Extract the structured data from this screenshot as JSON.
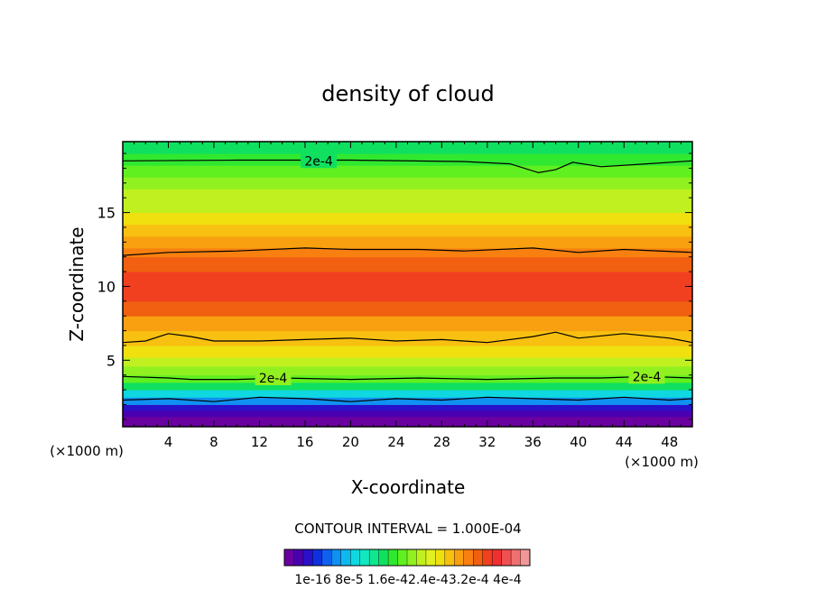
{
  "chart_data": {
    "type": "heatmap",
    "title": "density of cloud",
    "xlabel": "X-coordinate",
    "ylabel": "Z-coordinate",
    "x_unit_left": "(×1000 m)",
    "x_unit_right": "(×1000 m)",
    "xlim": [
      0,
      50
    ],
    "ylim": [
      0.5,
      19.8
    ],
    "x_ticks": [
      4,
      8,
      12,
      16,
      20,
      24,
      28,
      32,
      36,
      40,
      44,
      48
    ],
    "y_ticks": [
      5,
      10,
      15
    ],
    "contour_interval_text": "CONTOUR INTERVAL = 1.000E-04",
    "contour_labels": [
      {
        "text": "2e-4",
        "x": 17.2,
        "z": 18.5
      },
      {
        "text": "2e-4",
        "x": 13.2,
        "z": 3.8
      },
      {
        "text": "2e-4",
        "x": 46.0,
        "z": 3.9
      }
    ],
    "colorbar_labels": [
      "1e-16",
      "8e-5",
      "1.6e-4",
      "2.4e-4",
      "3.2e-4",
      "4e-4"
    ],
    "colorbar_label_text": "1e-16  8e-5  1.6e-42.4e-43.2e-4  4e-4",
    "colorbar_colors": [
      "#6a00a0",
      "#4a00b0",
      "#2a10c8",
      "#1030e0",
      "#1060f0",
      "#1090f0",
      "#10b8f0",
      "#10d8e0",
      "#10e8c0",
      "#10e890",
      "#10e060",
      "#30e830",
      "#60f020",
      "#90f020",
      "#c0f020",
      "#e0f020",
      "#f0e010",
      "#f8c010",
      "#f8a010",
      "#f88010",
      "#f06010",
      "#f04020",
      "#f03030",
      "#f05050",
      "#f07070",
      "#f09898"
    ],
    "bands": [
      {
        "z": 0.5,
        "level": 0.0
      },
      {
        "z": 1.2,
        "level": 0.02
      },
      {
        "z": 1.6,
        "level": 0.08
      },
      {
        "z": 2.0,
        "level": 0.18
      },
      {
        "z": 2.5,
        "level": 0.28
      },
      {
        "z": 3.0,
        "level": 0.38
      },
      {
        "z": 3.5,
        "level": 0.46
      },
      {
        "z": 4.0,
        "level": 0.52
      },
      {
        "z": 4.6,
        "level": 0.58
      },
      {
        "z": 5.2,
        "level": 0.62
      },
      {
        "z": 6.0,
        "level": 0.66
      },
      {
        "z": 7.0,
        "level": 0.72
      },
      {
        "z": 8.0,
        "level": 0.78
      },
      {
        "z": 9.0,
        "level": 0.82
      },
      {
        "z": 10.0,
        "level": 0.84
      },
      {
        "z": 11.0,
        "level": 0.8
      },
      {
        "z": 12.0,
        "level": 0.76
      },
      {
        "z": 12.6,
        "level": 0.72
      },
      {
        "z": 13.4,
        "level": 0.66
      },
      {
        "z": 14.2,
        "level": 0.62
      },
      {
        "z": 15.0,
        "level": 0.58
      },
      {
        "z": 15.8,
        "level": 0.54
      },
      {
        "z": 16.6,
        "level": 0.5
      },
      {
        "z": 17.4,
        "level": 0.46
      },
      {
        "z": 18.2,
        "level": 0.42
      },
      {
        "z": 19.0,
        "level": 0.38
      },
      {
        "z": 19.8,
        "level": 0.34
      }
    ],
    "contour_lines": [
      {
        "name": "upper-2e-4",
        "points": [
          [
            0,
            18.5
          ],
          [
            10,
            18.55
          ],
          [
            20,
            18.55
          ],
          [
            30,
            18.45
          ],
          [
            34,
            18.3
          ],
          [
            36.5,
            17.7
          ],
          [
            38,
            17.9
          ],
          [
            39.5,
            18.4
          ],
          [
            42,
            18.1
          ],
          [
            46,
            18.3
          ],
          [
            50,
            18.5
          ]
        ]
      },
      {
        "name": "upper-1e-4",
        "points": [
          [
            0,
            12.1
          ],
          [
            4,
            12.3
          ],
          [
            10,
            12.4
          ],
          [
            16,
            12.6
          ],
          [
            20,
            12.5
          ],
          [
            26,
            12.5
          ],
          [
            30,
            12.4
          ],
          [
            36,
            12.6
          ],
          [
            40,
            12.3
          ],
          [
            44,
            12.5
          ],
          [
            50,
            12.3
          ]
        ]
      },
      {
        "name": "mid-1e-4",
        "points": [
          [
            0,
            6.2
          ],
          [
            2,
            6.3
          ],
          [
            4,
            6.8
          ],
          [
            6,
            6.6
          ],
          [
            8,
            6.3
          ],
          [
            12,
            6.3
          ],
          [
            16,
            6.4
          ],
          [
            20,
            6.5
          ],
          [
            24,
            6.3
          ],
          [
            28,
            6.4
          ],
          [
            32,
            6.2
          ],
          [
            36,
            6.6
          ],
          [
            38,
            6.9
          ],
          [
            40,
            6.5
          ],
          [
            44,
            6.8
          ],
          [
            48,
            6.5
          ],
          [
            50,
            6.2
          ]
        ]
      },
      {
        "name": "lower-2e-4",
        "points": [
          [
            0,
            3.9
          ],
          [
            4,
            3.8
          ],
          [
            6,
            3.7
          ],
          [
            10,
            3.7
          ],
          [
            14,
            3.8
          ],
          [
            20,
            3.7
          ],
          [
            26,
            3.8
          ],
          [
            32,
            3.7
          ],
          [
            38,
            3.8
          ],
          [
            42,
            3.8
          ],
          [
            46,
            3.9
          ],
          [
            50,
            3.8
          ]
        ]
      },
      {
        "name": "bottom-1e-4",
        "points": [
          [
            0,
            2.3
          ],
          [
            4,
            2.4
          ],
          [
            8,
            2.2
          ],
          [
            12,
            2.5
          ],
          [
            16,
            2.4
          ],
          [
            20,
            2.2
          ],
          [
            24,
            2.4
          ],
          [
            28,
            2.3
          ],
          [
            32,
            2.5
          ],
          [
            36,
            2.4
          ],
          [
            40,
            2.3
          ],
          [
            44,
            2.5
          ],
          [
            48,
            2.3
          ],
          [
            50,
            2.4
          ]
        ]
      }
    ]
  }
}
